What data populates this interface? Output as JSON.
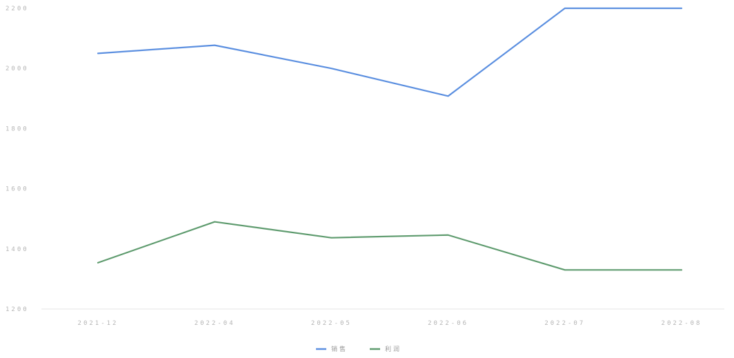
{
  "chart_data": {
    "type": "line",
    "title": "",
    "xlabel": "",
    "ylabel": "",
    "categories": [
      "2021-12",
      "2022-04",
      "2022-05",
      "2022-06",
      "2022-07",
      "2022-08"
    ],
    "ylim": [
      1200,
      2200
    ],
    "yticks": [
      1200,
      1400,
      1600,
      1800,
      2000,
      2200
    ],
    "grid": false,
    "legend_position": "bottom-center",
    "series": [
      {
        "name": "销售",
        "color": "#5b8fe0",
        "values": [
          2050,
          2077,
          2000,
          1908,
          2200,
          2200
        ]
      },
      {
        "name": "利润",
        "color": "#5e9b6e",
        "values": [
          1354,
          1490,
          1437,
          1446,
          1330,
          1330
        ]
      }
    ]
  }
}
